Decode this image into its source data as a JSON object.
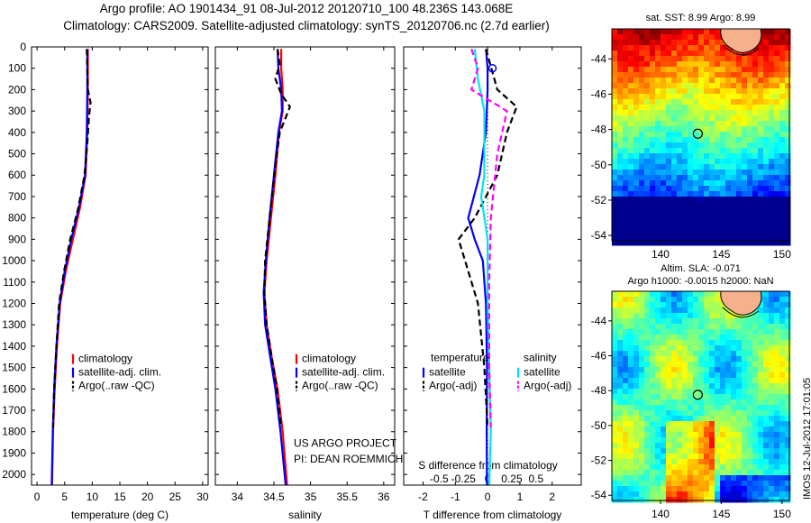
{
  "header": {
    "title_line1": "Argo profile: AO 1901434_91 08-Jul-2012 20120710_100 48.236S 143.068E",
    "title_line2": "Climatology: CARS2009. Satellite-adjusted climatology: synTS_20120706.nc (2.7d earlier)"
  },
  "credits": {
    "line1": "US ARGO PROJECT",
    "line2": "PI: DEAN ROEMMICH"
  },
  "timestamp": "IMOS 12-Jul-2012 17:01:05",
  "colors": {
    "climatology": "#ff0000",
    "satellite": "#0000ff",
    "argo": "#000000",
    "salinity_sat": "#00e5ee",
    "salinity_argo": "#ff00ff"
  },
  "chart_data": [
    {
      "type": "line",
      "title": "",
      "xlabel": "temperature (deg C)",
      "ylabel": "",
      "xlim": [
        -1,
        31
      ],
      "ylim": [
        2050,
        0
      ],
      "xticks": [
        "0",
        "5",
        "10",
        "15",
        "20",
        "25",
        "30"
      ],
      "yticks": [
        "0",
        "100",
        "200",
        "300",
        "400",
        "500",
        "600",
        "700",
        "800",
        "900",
        "1000",
        "1100",
        "1200",
        "1300",
        "1400",
        "1500",
        "1600",
        "1700",
        "1800",
        "1900",
        "2000"
      ],
      "legend": {
        "position": "lower-center",
        "entries": [
          "climatology",
          "satellite-adj. clim.",
          "Argo(..raw -QC)"
        ]
      },
      "series": [
        {
          "name": "climatology",
          "color": "#ff0000",
          "dash": "solid",
          "points": [
            [
              9.2,
              10
            ],
            [
              9.2,
              200
            ],
            [
              9.1,
              400
            ],
            [
              8.8,
              600
            ],
            [
              7.8,
              750
            ],
            [
              6.5,
              900
            ],
            [
              5.2,
              1050
            ],
            [
              4.2,
              1200
            ],
            [
              3.6,
              1400
            ],
            [
              3.2,
              1600
            ],
            [
              2.9,
              1800
            ],
            [
              2.7,
              2050
            ]
          ]
        },
        {
          "name": "satellite-adj. clim.",
          "color": "#0000ff",
          "dash": "solid",
          "points": [
            [
              9.1,
              10
            ],
            [
              9.1,
              200
            ],
            [
              9.0,
              400
            ],
            [
              8.7,
              600
            ],
            [
              7.6,
              750
            ],
            [
              6.2,
              900
            ],
            [
              5.0,
              1050
            ],
            [
              4.1,
              1200
            ],
            [
              3.5,
              1400
            ],
            [
              3.1,
              1600
            ],
            [
              2.85,
              1800
            ],
            [
              2.65,
              2050
            ]
          ]
        },
        {
          "name": "Argo(..raw -QC)",
          "color": "#000000",
          "dash": "dashed",
          "points": [
            [
              9.0,
              10
            ],
            [
              9.1,
              100
            ],
            [
              9.2,
              200
            ],
            [
              9.7,
              260
            ],
            [
              9.4,
              330
            ],
            [
              9.1,
              450
            ],
            [
              8.6,
              600
            ],
            [
              7.4,
              760
            ],
            [
              6.0,
              900
            ],
            [
              4.9,
              1050
            ],
            [
              4.0,
              1200
            ],
            [
              3.5,
              1400
            ],
            [
              3.1,
              1600
            ],
            [
              2.9,
              1780
            ]
          ]
        }
      ]
    },
    {
      "type": "line",
      "title": "",
      "xlabel": "salinity",
      "ylabel": "",
      "xlim": [
        33.7,
        36.15
      ],
      "ylim": [
        2050,
        0
      ],
      "xticks": [
        "34",
        "34.5",
        "35",
        "35.5",
        "36"
      ],
      "legend": {
        "position": "lower-center",
        "entries": [
          "climatology",
          "satellite-adj. clim.",
          "Argo(..raw -QC)"
        ]
      },
      "series": [
        {
          "name": "climatology",
          "color": "#ff0000",
          "dash": "solid",
          "points": [
            [
              34.6,
              10
            ],
            [
              34.6,
              100
            ],
            [
              34.62,
              200
            ],
            [
              34.62,
              300
            ],
            [
              34.57,
              400
            ],
            [
              34.52,
              600
            ],
            [
              34.46,
              800
            ],
            [
              34.4,
              1000
            ],
            [
              34.37,
              1150
            ],
            [
              34.4,
              1300
            ],
            [
              34.47,
              1450
            ],
            [
              34.55,
              1600
            ],
            [
              34.62,
              1800
            ],
            [
              34.68,
              2050
            ]
          ]
        },
        {
          "name": "satellite-adj. clim.",
          "color": "#0000ff",
          "dash": "solid",
          "points": [
            [
              34.55,
              10
            ],
            [
              34.56,
              100
            ],
            [
              34.6,
              200
            ],
            [
              34.61,
              300
            ],
            [
              34.56,
              400
            ],
            [
              34.5,
              600
            ],
            [
              34.44,
              800
            ],
            [
              34.39,
              1000
            ],
            [
              34.36,
              1150
            ],
            [
              34.38,
              1300
            ],
            [
              34.45,
              1450
            ],
            [
              34.52,
              1600
            ],
            [
              34.59,
              1800
            ],
            [
              34.66,
              2050
            ]
          ]
        },
        {
          "name": "Argo(..raw -QC)",
          "color": "#000000",
          "dash": "dashed",
          "points": [
            [
              34.55,
              10
            ],
            [
              34.58,
              80
            ],
            [
              34.52,
              150
            ],
            [
              34.6,
              220
            ],
            [
              34.72,
              280
            ],
            [
              34.65,
              340
            ],
            [
              34.58,
              400
            ],
            [
              34.52,
              550
            ],
            [
              34.46,
              750
            ],
            [
              34.41,
              900
            ],
            [
              34.38,
              1000
            ],
            [
              34.37,
              1150
            ],
            [
              34.4,
              1300
            ],
            [
              34.47,
              1450
            ],
            [
              34.54,
              1600
            ],
            [
              34.6,
              1780
            ]
          ]
        }
      ]
    },
    {
      "type": "line",
      "title": "",
      "xlabel": "T difference from climatology",
      "xlabel_top": "S difference from climatology",
      "ylabel": "",
      "xlim": [
        -2.6,
        2.9
      ],
      "ylim": [
        2050,
        0
      ],
      "xticks": [
        "-2",
        "-1",
        "0",
        "1",
        "2"
      ],
      "xticks_top": [
        "-0.5",
        "-0.25",
        "0",
        "0.25",
        "0.5"
      ],
      "legend": {
        "position": "lower-center",
        "header_left": "temperature",
        "header_right": "salinity",
        "entries": [
          "satellite",
          "Argo(-adj)",
          "satellite",
          "Argo(-adj)"
        ]
      },
      "series": [
        {
          "name": "satellite",
          "group": "temperature",
          "color": "#0000ff",
          "dash": "solid",
          "points": [
            [
              -0.05,
              10
            ],
            [
              0.0,
              100
            ],
            [
              0.0,
              200
            ],
            [
              -0.05,
              400
            ],
            [
              -0.25,
              600
            ],
            [
              -0.6,
              800
            ],
            [
              -0.4,
              900
            ],
            [
              -0.15,
              1000
            ],
            [
              -0.05,
              1200
            ],
            [
              -0.02,
              1500
            ],
            [
              -0.03,
              1800
            ],
            [
              -0.02,
              2050
            ]
          ]
        },
        {
          "name": "Argo(-adj)",
          "group": "temperature",
          "color": "#000000",
          "dash": "dashed",
          "points": [
            [
              -0.05,
              10
            ],
            [
              0.3,
              200
            ],
            [
              0.9,
              280
            ],
            [
              0.6,
              400
            ],
            [
              0.3,
              600
            ],
            [
              -0.4,
              800
            ],
            [
              -0.9,
              900
            ],
            [
              -0.7,
              1000
            ],
            [
              -0.3,
              1200
            ],
            [
              -0.1,
              1500
            ],
            [
              0.0,
              1780
            ]
          ]
        },
        {
          "name": "satellite",
          "group": "salinity",
          "color": "#00e5ee",
          "dash": "solid",
          "points": [
            [
              -0.4,
              10
            ],
            [
              -0.3,
              150
            ],
            [
              -0.1,
              300
            ],
            [
              -0.1,
              600
            ],
            [
              -0.2,
              700
            ],
            [
              0.0,
              900
            ],
            [
              0.0,
              1200
            ],
            [
              0.05,
              1500
            ],
            [
              0.1,
              1800
            ],
            [
              0.05,
              2050
            ]
          ]
        },
        {
          "name": "Argo(-adj)",
          "group": "salinity",
          "color": "#ff00ff",
          "dash": "dashed",
          "points": [
            [
              -0.5,
              10
            ],
            [
              -0.3,
              100
            ],
            [
              -0.5,
              200
            ],
            [
              0.6,
              300
            ],
            [
              0.3,
              500
            ],
            [
              0.1,
              800
            ],
            [
              0.05,
              1100
            ],
            [
              0.05,
              1500
            ],
            [
              0.1,
              1780
            ]
          ]
        }
      ]
    },
    {
      "type": "heatmap",
      "title": "sat. SST: 8.99 Argo: 8.99",
      "xlim": [
        136,
        150.6
      ],
      "ylim": [
        -54.3,
        -42.3
      ],
      "xticks": [
        "140",
        "145",
        "150"
      ],
      "yticks": [
        "-44",
        "-46",
        "-48",
        "-50",
        "-52",
        "-54"
      ],
      "marker": {
        "lon": 143.068,
        "lat": -48.236
      },
      "colormap": "jet"
    },
    {
      "type": "heatmap",
      "title_line1": "Altim. SLA: -0.071",
      "title_line2": "Argo h1000: -0.0015 h2000: NaN",
      "xlim": [
        136,
        150.6
      ],
      "ylim": [
        -54.3,
        -42.3
      ],
      "xticks": [
        "140",
        "145",
        "150"
      ],
      "yticks": [
        "-44",
        "-46",
        "-48",
        "-50",
        "-52",
        "-54"
      ],
      "marker": {
        "lon": 143.068,
        "lat": -48.236
      },
      "colormap": "jet"
    }
  ]
}
